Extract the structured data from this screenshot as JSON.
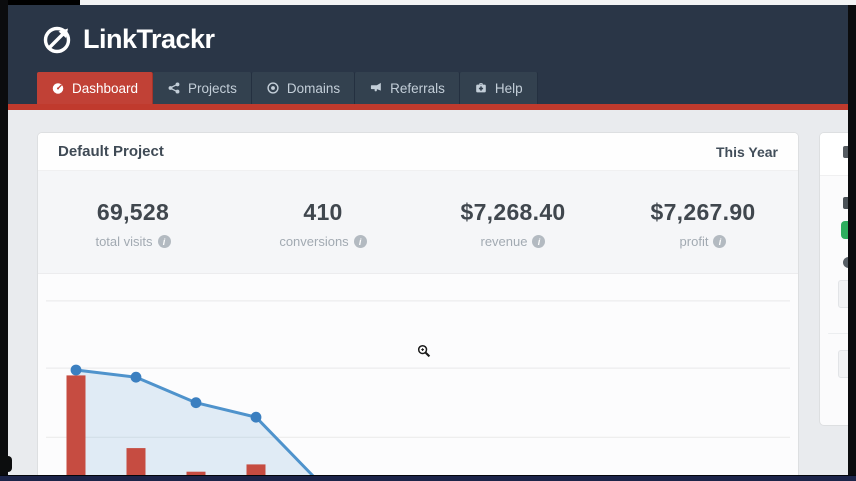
{
  "header": {
    "logo_text": "LinkTrackr"
  },
  "nav": {
    "tabs": [
      {
        "id": "dashboard",
        "label": "Dashboard",
        "icon": "dashboard-gauge-icon",
        "active": true
      },
      {
        "id": "projects",
        "label": "Projects",
        "icon": "share-nodes-icon",
        "active": false
      },
      {
        "id": "domains",
        "label": "Domains",
        "icon": "globe-target-icon",
        "active": false
      },
      {
        "id": "referrals",
        "label": "Referrals",
        "icon": "megaphone-icon",
        "active": false
      },
      {
        "id": "help",
        "label": "Help",
        "icon": "first-aid-icon",
        "active": false
      }
    ]
  },
  "project_panel": {
    "title": "Default Project",
    "period": "This Year",
    "stats": [
      {
        "value": "69,528",
        "label": "total visits",
        "info_icon": true
      },
      {
        "value": "410",
        "label": "conversions",
        "info_icon": true
      },
      {
        "value": "$7,268.40",
        "label": "revenue",
        "info_icon": true
      },
      {
        "value": "$7,267.90",
        "label": "profit",
        "info_icon": true
      }
    ]
  },
  "chart_data": {
    "type": "mixed",
    "title": "",
    "xlabel": "",
    "ylabel": "",
    "note": "Chart is cropped by the bottom of the screenshot; no axis tick labels are visible. Values estimated on a relative 0-100 scale from gridline positions.",
    "grid": true,
    "gridline_values": [
      100,
      63,
      25
    ],
    "legend_position": "none",
    "series": [
      {
        "name": "visits-line",
        "type": "line",
        "color": "#4f93cc",
        "marker_color": "#3b7fc0",
        "area_fill": "rgba(79,147,204,0.16)",
        "values": [
          62,
          58,
          44,
          36,
          2
        ]
      },
      {
        "name": "sales-bars",
        "type": "bar",
        "color": "#c64c41",
        "values": [
          59,
          19,
          6,
          10
        ]
      }
    ]
  },
  "side_panel": {
    "truncated": true,
    "legible_text": "",
    "badge_color": "#2eae5e"
  },
  "cursor": {
    "type": "zoom-in-magnifier"
  },
  "colors": {
    "header_bg": "#2a3647",
    "tab_bg": "#33414f",
    "active_tab_red": "#c14136",
    "accent_red": "#c03a2d",
    "page_bg": "#e9ebee",
    "panel_bg": "#fcfcfd",
    "stats_bg": "#f5f6f8",
    "line_blue": "#4f93cc",
    "bar_red": "#c64c41",
    "badge_green": "#2eae5e",
    "bottom_bar_navy": "#1c2449"
  }
}
